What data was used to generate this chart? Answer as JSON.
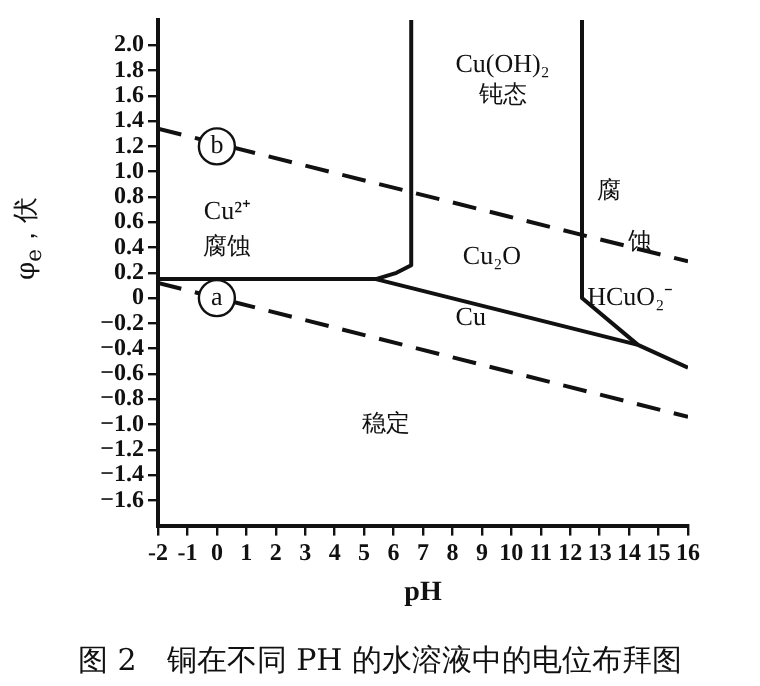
{
  "chart_data": {
    "type": "line",
    "xlabel": "pH",
    "ylabel": "φ$_{e}$，伏",
    "xlim": [
      -2,
      16
    ],
    "xticks": [
      -2,
      -1,
      0,
      1,
      2,
      3,
      4,
      5,
      6,
      7,
      8,
      9,
      10,
      11,
      12,
      13,
      14,
      15,
      16
    ],
    "ylim": [
      -1.8,
      2.2
    ],
    "yticks": [
      {
        "value": -1.6,
        "label": "−1.6"
      },
      {
        "value": -1.4,
        "label": "−1.4"
      },
      {
        "value": -1.2,
        "label": "−1.2"
      },
      {
        "value": -1.0,
        "label": "−1.0"
      },
      {
        "value": -0.8,
        "label": "−0.8"
      },
      {
        "value": -0.6,
        "label": "−0.6"
      },
      {
        "value": -0.4,
        "label": "−0.4"
      },
      {
        "value": -0.2,
        "label": "−0.2"
      },
      0,
      {
        "value": 0.2,
        "label": "0.2"
      },
      {
        "value": 0.4,
        "label": "0.4"
      },
      {
        "value": 0.6,
        "label": "0.6"
      },
      {
        "value": 0.8,
        "label": "0.8"
      },
      {
        "value": 1.0,
        "label": "1.0"
      },
      {
        "value": 1.2,
        "label": "1.2"
      },
      {
        "value": 1.4,
        "label": "1.4"
      },
      {
        "value": 1.6,
        "label": "1.6"
      },
      {
        "value": 1.8,
        "label": "1.8"
      },
      {
        "value": 2.0,
        "label": "2.0"
      }
    ],
    "grid": false,
    "legend": false,
    "marker": "none",
    "series": [
      {
        "color": "#111111",
        "line_style": "dashed",
        "x": [
          -2,
          16
        ],
        "values": [
          1.34,
          0.29
        ]
      },
      {
        "color": "#111111",
        "line_style": "dashed",
        "x": [
          -2,
          16
        ],
        "values": [
          0.12,
          -0.94
        ]
      },
      {
        "color": "#111111",
        "line_style": "solid",
        "x": [
          -2,
          5.4,
          6.1,
          6.6,
          6.6
        ],
        "values": [
          0.15,
          0.15,
          0.2,
          0.26,
          2.2
        ]
      },
      {
        "color": "#111111",
        "line_style": "solid",
        "x": [
          5.4,
          14.3,
          16
        ],
        "values": [
          0.15,
          -0.37,
          -0.55
        ]
      },
      {
        "color": "#111111",
        "line_style": "solid",
        "x": [
          12.4,
          12.4,
          14.3
        ],
        "values": [
          2.2,
          0,
          -0.37
        ]
      }
    ],
    "annotations": [
      {
        "text": "b",
        "x": 0,
        "y": 1.2
      },
      {
        "text": "a",
        "x": 0,
        "y": 0
      },
      "Cu²⁺",
      "腐蚀",
      "Cu(OH)₂",
      "钝态",
      "腐",
      "蚀",
      "Cu₂O",
      "HCuO₂⁻",
      "Cu",
      "稳定",
      "图 2　铜在不同 PH 的水溶液中的电位布拜图"
    ]
  }
}
